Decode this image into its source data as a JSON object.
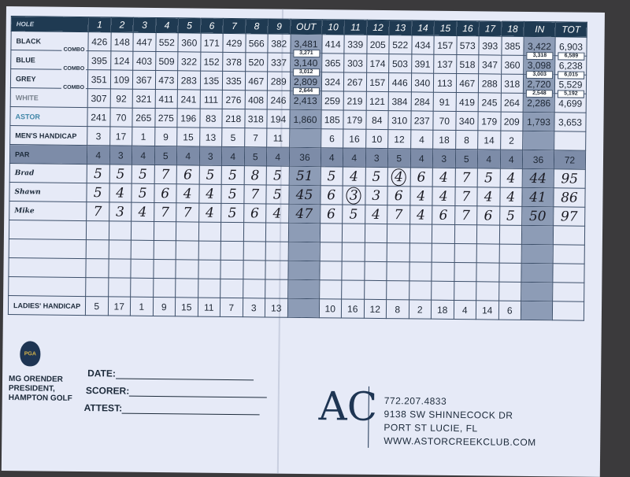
{
  "scorecard": {
    "header": {
      "label": "HOLE",
      "front": [
        "1",
        "2",
        "3",
        "4",
        "5",
        "6",
        "7",
        "8",
        "9"
      ],
      "out": "OUT",
      "back": [
        "10",
        "11",
        "12",
        "13",
        "14",
        "15",
        "16",
        "17",
        "18"
      ],
      "in": "IN",
      "tot": "TOT"
    },
    "tees": [
      {
        "label": "BLACK",
        "front": [
          "426",
          "148",
          "447",
          "552",
          "360",
          "171",
          "429",
          "566",
          "382"
        ],
        "out": "3,481",
        "back": [
          "414",
          "339",
          "205",
          "522",
          "434",
          "157",
          "573",
          "393",
          "385"
        ],
        "in": "3,422",
        "tot": "6,903"
      },
      {
        "label": "BLUE",
        "combo_label": "COMBO",
        "front": [
          "395",
          "124",
          "403",
          "509",
          "322",
          "152",
          "378",
          "520",
          "337"
        ],
        "out": "3,140",
        "out_combo": "3,271",
        "back": [
          "365",
          "303",
          "174",
          "503",
          "391",
          "137",
          "518",
          "347",
          "360"
        ],
        "in": "3,098",
        "in_combo": "3,318",
        "tot": "6,238",
        "tot_combo": "6,589"
      },
      {
        "label": "GREY",
        "combo_label": "COMBO",
        "front": [
          "351",
          "109",
          "367",
          "473",
          "283",
          "135",
          "335",
          "467",
          "289"
        ],
        "out": "2,809",
        "out_combo": "3,012",
        "back": [
          "324",
          "267",
          "157",
          "446",
          "340",
          "113",
          "467",
          "288",
          "318"
        ],
        "in": "2,720",
        "in_combo": "3,003",
        "tot": "5,529",
        "tot_combo": "6,015"
      },
      {
        "label": "WHITE",
        "combo_label": "COMBO",
        "front": [
          "307",
          "92",
          "321",
          "411",
          "241",
          "111",
          "276",
          "408",
          "246"
        ],
        "out": "2,413",
        "out_combo": "2,644",
        "back": [
          "259",
          "219",
          "121",
          "384",
          "284",
          "91",
          "419",
          "245",
          "264"
        ],
        "in": "2,286",
        "in_combo": "2,548",
        "tot": "4,699",
        "tot_combo": "5,192"
      },
      {
        "label": "ASTOR",
        "front": [
          "241",
          "70",
          "265",
          "275",
          "196",
          "83",
          "218",
          "318",
          "194"
        ],
        "out": "1,860",
        "back": [
          "185",
          "179",
          "84",
          "310",
          "237",
          "70",
          "340",
          "179",
          "209"
        ],
        "in": "1,793",
        "tot": "3,653"
      }
    ],
    "mens_handicap": {
      "label": "MEN'S HANDICAP",
      "front": [
        "3",
        "17",
        "1",
        "9",
        "15",
        "13",
        "5",
        "7",
        "11"
      ],
      "back": [
        "6",
        "16",
        "10",
        "12",
        "4",
        "18",
        "8",
        "14",
        "2"
      ]
    },
    "par": {
      "label": "PAR",
      "front": [
        "4",
        "3",
        "4",
        "5",
        "4",
        "3",
        "4",
        "5",
        "4"
      ],
      "out": "36",
      "back": [
        "4",
        "4",
        "3",
        "5",
        "4",
        "3",
        "5",
        "4",
        "4"
      ],
      "in": "36",
      "tot": "72"
    },
    "players": [
      {
        "name": "Brad",
        "front": [
          "5",
          "5",
          "5",
          "7",
          "6",
          "5",
          "5",
          "8",
          "5"
        ],
        "out": "51",
        "back": [
          "5",
          "4",
          "5",
          "4",
          "6",
          "4",
          "7",
          "5",
          "4"
        ],
        "in": "44",
        "tot": "95",
        "circled_holes": [
          13
        ]
      },
      {
        "name": "Shawn",
        "front": [
          "5",
          "4",
          "5",
          "6",
          "4",
          "4",
          "5",
          "7",
          "5"
        ],
        "out": "45",
        "back": [
          "6",
          "3",
          "3",
          "6",
          "4",
          "4",
          "7",
          "4",
          "4"
        ],
        "in": "41",
        "tot": "86",
        "circled_holes": [
          11
        ]
      },
      {
        "name": "Mike",
        "front": [
          "7",
          "3",
          "4",
          "7",
          "7",
          "4",
          "5",
          "6",
          "4"
        ],
        "out": "47",
        "back": [
          "6",
          "5",
          "4",
          "7",
          "4",
          "6",
          "7",
          "6",
          "5"
        ],
        "in": "50",
        "tot": "97",
        "circled_holes": []
      }
    ],
    "empty_rows": 4,
    "ladies_handicap": {
      "label": "LADIES' HANDICAP",
      "front": [
        "5",
        "17",
        "1",
        "9",
        "15",
        "11",
        "7",
        "3",
        "13"
      ],
      "back": [
        "10",
        "16",
        "12",
        "8",
        "2",
        "18",
        "4",
        "14",
        "6"
      ]
    }
  },
  "footer": {
    "pga_logo_text": "PGA",
    "president": [
      "MG ORENDER",
      "PRESIDENT,",
      "HAMPTON GOLF"
    ],
    "date_label": "DATE:",
    "scorer_label": "SCORER:",
    "attest_label": "ATTEST:",
    "club_logo": "AC",
    "phone": "772.207.4833",
    "address1": "9138 SW  SHINNECOCK DR",
    "address2": "PORT ST LUCIE, FL",
    "website": "WWW.ASTORCREEKCLUB.COM"
  },
  "colors": {
    "header": "#1f3a52",
    "card": "#e6eaf7",
    "par_row": "#7d8ca8",
    "astor": "#3f86a8"
  }
}
